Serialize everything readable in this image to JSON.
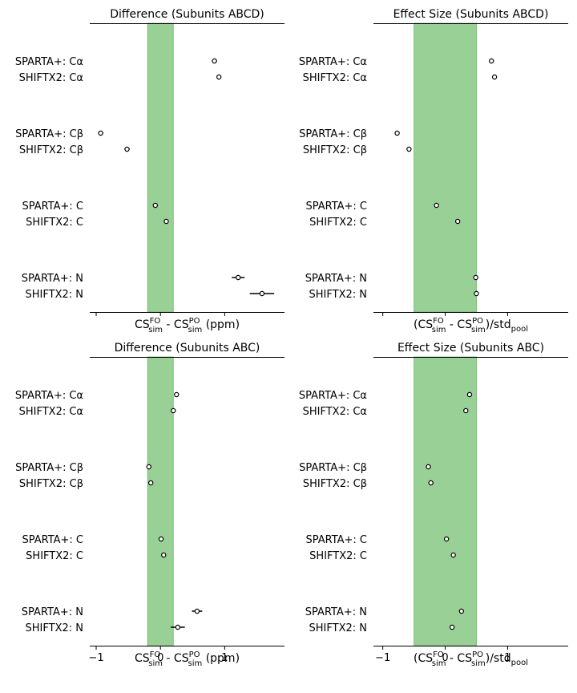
{
  "figure": {
    "colors": {
      "band": "#98d095",
      "band_edge": "#6fb36c",
      "axis": "#000000",
      "marker_face": "#ffffff",
      "marker_edge": "#000000"
    }
  },
  "chart_data": [
    {
      "type": "scatter",
      "title": "Difference (Subunits ABCD)",
      "xlabel": "CS_sim^FO - CS_sim^PO (ppm)",
      "xlabel_parts": {
        "pre": "CS",
        "sup1": "FO",
        "sub1": "sim",
        "mid": " - CS",
        "sup2": "PO",
        "sub2": "sim",
        "post": " (ppm)"
      },
      "xlim": [
        -1.1,
        1.93
      ],
      "xticks": [
        -1,
        0,
        1
      ],
      "tick_labels_shown": false,
      "band": [
        -0.2,
        0.2
      ],
      "categories": [
        "SPARTA+: Cα",
        "SHIFTX2: Cα",
        "SPARTA+: Cβ",
        "SHIFTX2: Cβ",
        "SPARTA+: C",
        "SHIFTX2: C",
        "SPARTA+: N",
        "SHIFTX2: N"
      ],
      "values": [
        0.84,
        0.91,
        -0.93,
        -0.52,
        -0.08,
        0.09,
        1.21,
        1.58
      ],
      "errors": [
        [
          0.04,
          0.04
        ],
        [
          0.03,
          0.03
        ],
        [
          0.04,
          0.04
        ],
        [
          0.04,
          0.04
        ],
        [
          0.02,
          0.02
        ],
        [
          0.02,
          0.02
        ],
        [
          0.1,
          0.1
        ],
        [
          0.19,
          0.19
        ]
      ]
    },
    {
      "type": "scatter",
      "title": "Effect Size (Subunits ABCD)",
      "xlabel": "(CS_sim^FO - CS_sim^PO)/std_pool",
      "xlabel_parts": {
        "pre": "(CS",
        "sup1": "FO",
        "sub1": "sim",
        "mid": " - CS",
        "sup2": "PO",
        "sub2": "sim",
        "post": ")/std",
        "sub3": "pool"
      },
      "xlim": [
        -1.15,
        1.97
      ],
      "xticks": [
        -1,
        0,
        1
      ],
      "tick_labels_shown": false,
      "band": [
        -0.5,
        0.5
      ],
      "categories": [
        "SPARTA+: Cα",
        "SHIFTX2: Cα",
        "SPARTA+: Cβ",
        "SHIFTX2: Cβ",
        "SPARTA+: C",
        "SHIFTX2: C",
        "SPARTA+: N",
        "SHIFTX2: N"
      ],
      "values": [
        0.74,
        0.79,
        -0.77,
        -0.58,
        -0.14,
        0.2,
        0.49,
        0.5
      ],
      "errors": [
        [
          0.02,
          0.02
        ],
        [
          0.02,
          0.02
        ],
        [
          0.02,
          0.02
        ],
        [
          0.02,
          0.02
        ],
        [
          0.03,
          0.03
        ],
        [
          0.03,
          0.03
        ],
        [
          0.03,
          0.03
        ],
        [
          0.03,
          0.03
        ]
      ]
    },
    {
      "type": "scatter",
      "title": "Difference (Subunits ABC)",
      "xlabel": "CS_sim^FO - CS_sim^PO (ppm)",
      "xlabel_parts": {
        "pre": "CS",
        "sup1": "FO",
        "sub1": "sim",
        "mid": " - CS",
        "sup2": "PO",
        "sub2": "sim",
        "post": " (ppm)"
      },
      "xlim": [
        -1.1,
        1.93
      ],
      "xticks": [
        -1,
        0,
        1
      ],
      "tick_labels": [
        "−1",
        "0",
        "1"
      ],
      "tick_labels_shown": true,
      "band": [
        -0.2,
        0.2
      ],
      "categories": [
        "SPARTA+: Cα",
        "SHIFTX2: Cα",
        "SPARTA+: Cβ",
        "SHIFTX2: Cβ",
        "SPARTA+: C",
        "SHIFTX2: C",
        "SPARTA+: N",
        "SHIFTX2: N"
      ],
      "values": [
        0.25,
        0.2,
        -0.18,
        -0.15,
        0.01,
        0.05,
        0.57,
        0.27
      ],
      "errors": [
        [
          0.02,
          0.02
        ],
        [
          0.02,
          0.02
        ],
        [
          0.03,
          0.03
        ],
        [
          0.02,
          0.02
        ],
        [
          0.02,
          0.02
        ],
        [
          0.02,
          0.02
        ],
        [
          0.08,
          0.08
        ],
        [
          0.11,
          0.11
        ]
      ]
    },
    {
      "type": "scatter",
      "title": "Effect Size (Subunits ABC)",
      "xlabel": "(CS_sim^FO - CS_sim^PO)/std_pool",
      "xlabel_parts": {
        "pre": "(CS",
        "sup1": "FO",
        "sub1": "sim",
        "mid": " - CS",
        "sup2": "PO",
        "sub2": "sim",
        "post": ")/std",
        "sub3": "pool"
      },
      "xlim": [
        -1.15,
        1.97
      ],
      "xticks": [
        -1,
        0,
        1
      ],
      "tick_labels": [
        "−1",
        "0",
        "1"
      ],
      "tick_labels_shown": true,
      "band": [
        -0.5,
        0.5
      ],
      "categories": [
        "SPARTA+: Cα",
        "SHIFTX2: Cα",
        "SPARTA+: Cβ",
        "SHIFTX2: Cβ",
        "SPARTA+: C",
        "SHIFTX2: C",
        "SPARTA+: N",
        "SHIFTX2: N"
      ],
      "values": [
        0.39,
        0.33,
        -0.27,
        -0.23,
        0.02,
        0.13,
        0.26,
        0.11
      ],
      "errors": [
        [
          0.03,
          0.03
        ],
        [
          0.03,
          0.03
        ],
        [
          0.04,
          0.04
        ],
        [
          0.04,
          0.04
        ],
        [
          0.03,
          0.03
        ],
        [
          0.03,
          0.03
        ],
        [
          0.03,
          0.03
        ],
        [
          0.03,
          0.03
        ]
      ]
    }
  ]
}
